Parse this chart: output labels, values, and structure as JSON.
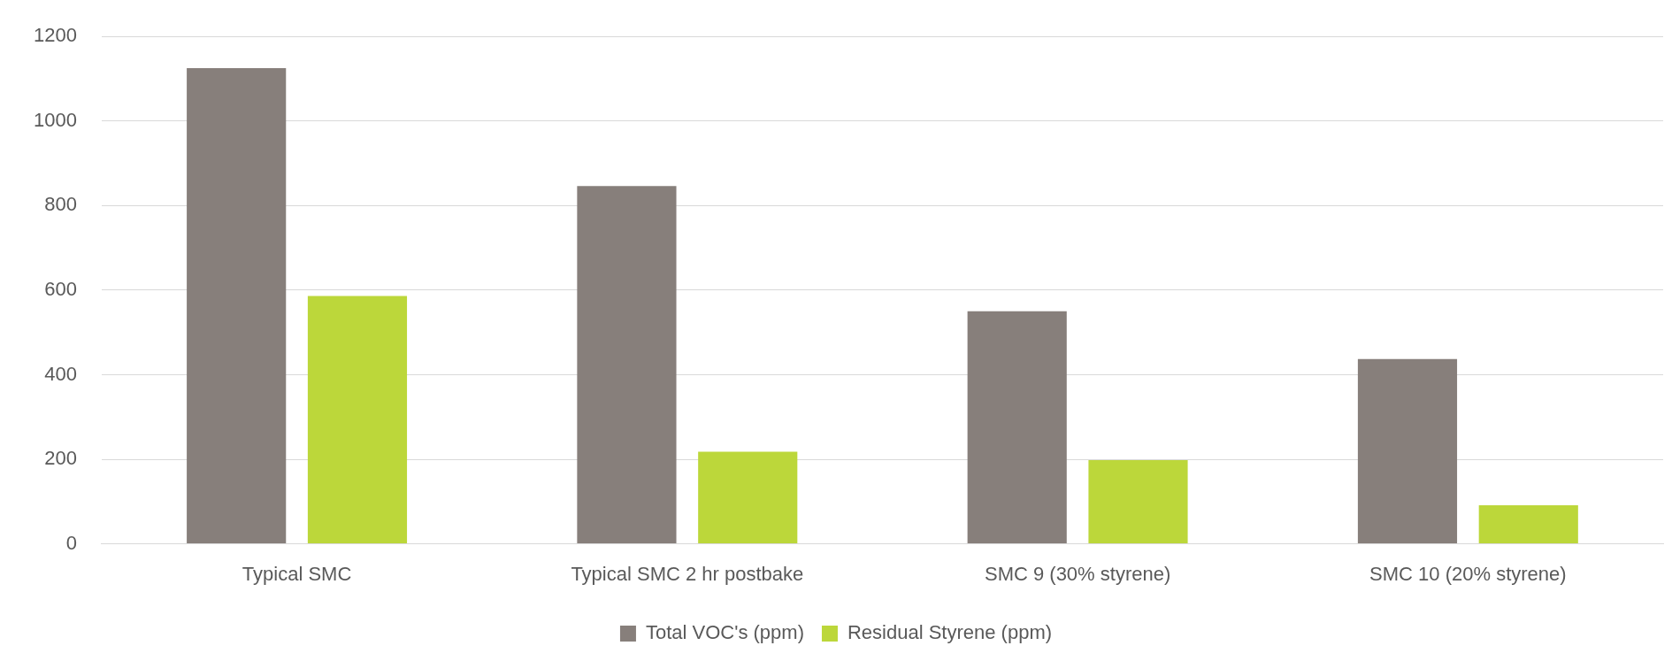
{
  "chart_data": {
    "type": "bar",
    "categories": [
      "Typical SMC",
      "Typical SMC 2 hr postbake",
      "SMC 9 (30% styrene)",
      "SMC 10 (20% styrene)"
    ],
    "series": [
      {
        "name": "Total VOC's (ppm)",
        "color": "#877f7b",
        "values": [
          1125,
          846,
          550,
          437
        ]
      },
      {
        "name": "Residual Styrene (ppm)",
        "color": "#bcd73a",
        "values": [
          586,
          218,
          198,
          91
        ]
      }
    ],
    "ylim": [
      0,
      1200
    ],
    "yticks": [
      0,
      200,
      400,
      600,
      800,
      1000,
      1200
    ],
    "grid": "y",
    "legend": "bottom"
  }
}
